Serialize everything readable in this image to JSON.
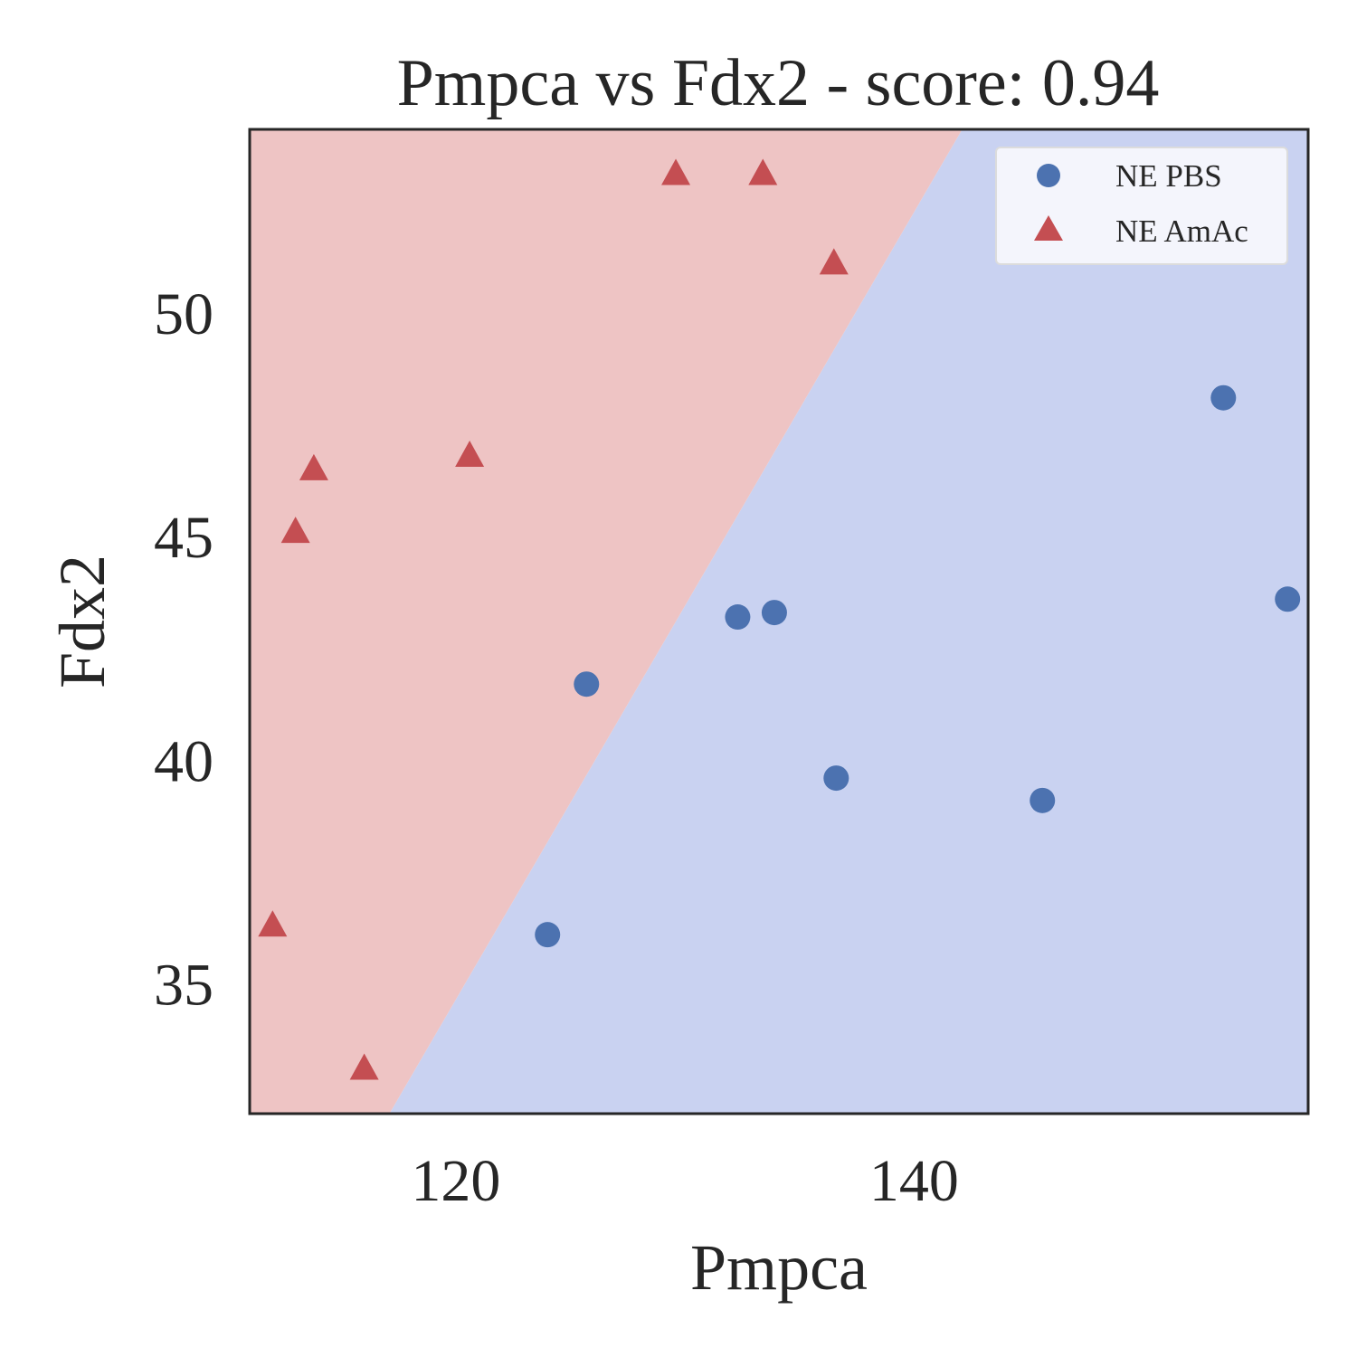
{
  "chart_data": {
    "type": "scatter",
    "title": "Pmpca vs Fdx2 - score: 0.94",
    "xlabel": "Pmpca",
    "ylabel": "Fdx2",
    "xlim": [
      111,
      157.2
    ],
    "ylim": [
      32.1,
      54.1
    ],
    "xticks": [
      120,
      140
    ],
    "yticks": [
      35,
      40,
      45,
      50
    ],
    "grid": false,
    "legend_position": "top-right",
    "decision_boundary": [
      [
        117.1,
        32.1
      ],
      [
        142.1,
        54.1
      ]
    ],
    "region_colors": {
      "left": "#eec4c4",
      "right": "#c9d2f1"
    },
    "series": [
      {
        "name": "NE PBS",
        "marker": "circle",
        "color": "#4c72b0",
        "points": [
          [
            124.0,
            36.1
          ],
          [
            125.7,
            41.7
          ],
          [
            132.3,
            43.2
          ],
          [
            133.9,
            43.3
          ],
          [
            136.6,
            39.6
          ],
          [
            145.6,
            39.1
          ],
          [
            153.5,
            48.1
          ],
          [
            156.3,
            43.6
          ]
        ]
      },
      {
        "name": "NE AmAc",
        "marker": "triangle",
        "color": "#c44e52",
        "points": [
          [
            112.0,
            36.3
          ],
          [
            116.0,
            33.1
          ],
          [
            113.0,
            45.1
          ],
          [
            113.8,
            46.5
          ],
          [
            120.6,
            46.8
          ],
          [
            129.6,
            53.1
          ],
          [
            133.4,
            53.1
          ],
          [
            136.5,
            51.1
          ]
        ]
      }
    ]
  }
}
